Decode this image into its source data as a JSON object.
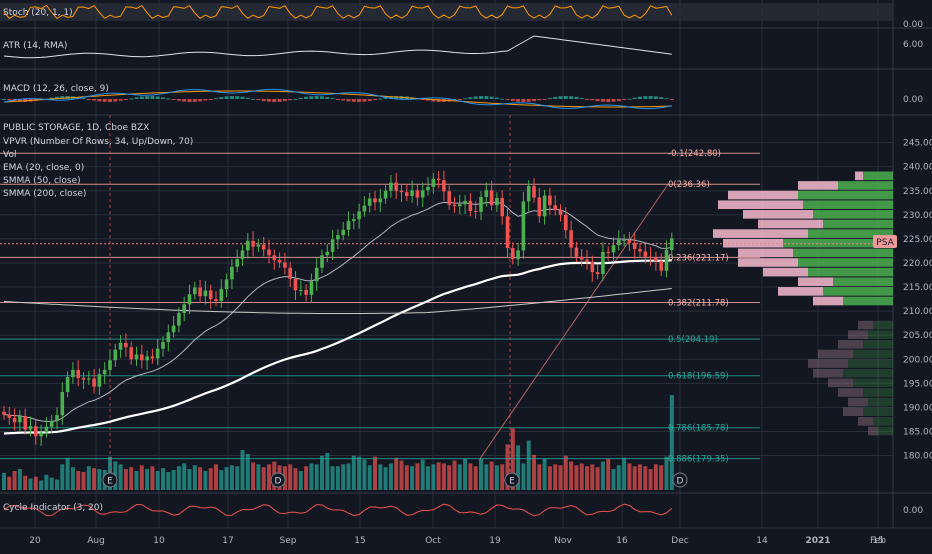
{
  "indicators": {
    "stoch": "Stoch (20, 1, 1)",
    "atr": "ATR (14, RMA)",
    "macd": "MACD (12, 26, close, 9)",
    "cycle": "Cycle Indicator (3, 20)"
  },
  "main_legend": [
    "PUBLIC STORAGE, 1D, Cboe BZX",
    "VPVR (Number Of Rows, 34, Up/Down, 70)",
    "Vol",
    "EMA (20, close, 0)",
    "SMMA (50, close)",
    "SMMA (200, close)"
  ],
  "symbol_tag": "PSA",
  "colors": {
    "background": "#131722",
    "grid": "#2a2e39",
    "up": "#26a69a",
    "down": "#ef5350",
    "up_candle": "#4caf50",
    "ema": "#b2b5be",
    "smma50": "#ffffff",
    "smma200": "#c9c9c9",
    "fib": "#ffb0a8",
    "fib_green": "#26a69a",
    "price_line": "#f08080"
  },
  "panel_axes": {
    "stoch": [
      "0.00"
    ],
    "atr": [
      "6.00"
    ],
    "macd": [
      "0.00"
    ],
    "cycle": [
      "0.00"
    ]
  },
  "chart_data": {
    "type": "candlestick",
    "symbol": "PUBLIC STORAGE",
    "interval": "1D",
    "y_ticks": [
      180,
      185,
      190,
      195,
      200,
      205,
      210,
      215,
      220,
      225,
      230,
      235,
      240,
      245
    ],
    "ylim": [
      177,
      247
    ],
    "x_ticks": [
      "20",
      "Aug",
      "10",
      "17",
      "Sep",
      "15",
      "Oct",
      "19",
      "Nov",
      "16",
      "Dec",
      "14",
      "2021",
      "15",
      "Feb"
    ],
    "fib_levels": [
      {
        "label": "-0.1(242.80)",
        "value": 242.8
      },
      {
        "label": "0(236.36)",
        "value": 236.36
      },
      {
        "label": "0.236(221.17)",
        "value": 221.17
      },
      {
        "label": "0.382(211.78)",
        "value": 211.78
      },
      {
        "label": "0.5(204.19)",
        "value": 204.19
      },
      {
        "label": "0.618(196.59)",
        "value": 196.59
      },
      {
        "label": "0.786(185.78)",
        "value": 185.78
      },
      {
        "label": "0.886(179.35)",
        "value": 179.35
      }
    ],
    "last_price": 224,
    "close": [
      188.5,
      187.8,
      186.9,
      188.2,
      185.4,
      186.1,
      184.0,
      184.8,
      186.0,
      187.2,
      188.4,
      193.2,
      196.3,
      197.8,
      196.1,
      195.8,
      196.0,
      194.3,
      196.9,
      197.8,
      199.8,
      202.0,
      203.4,
      202.5,
      200.0,
      201.0,
      199.8,
      200.6,
      200.2,
      202.2,
      203.6,
      205.6,
      207.0,
      209.6,
      211.4,
      213.5,
      214.9,
      213.1,
      214.3,
      212.5,
      212.1,
      214.6,
      216.6,
      219.2,
      220.8,
      222.6,
      224.6,
      223.4,
      223.8,
      222.8,
      221.6,
      220.6,
      220.1,
      219.0,
      216.7,
      214.3,
      214.4,
      213.4,
      216.2,
      219.0,
      221.6,
      222.3,
      224.9,
      225.8,
      226.9,
      228.7,
      229.1,
      230.7,
      231.9,
      233.4,
      232.6,
      233.4,
      235.0,
      236.7,
      235.0,
      234.7,
      233.9,
      235.1,
      233.6,
      235.1,
      235.8,
      237.5,
      237.2,
      234.9,
      232.1,
      231.8,
      232.2,
      232.9,
      230.8,
      230.6,
      233.7,
      235.1,
      232.0,
      233.5,
      229.7,
      223.1,
      220.8,
      222.6,
      232.8,
      236.0,
      233.6,
      229.7,
      234.0,
      232.0,
      231.0,
      230.0,
      226.8,
      223.2,
      221.3,
      220.7,
      220.3,
      218.1,
      217.7,
      222.3,
      222.2,
      223.7,
      224.8,
      224.8,
      224.2,
      222.9,
      222.4,
      221.3,
      221.1,
      220.4,
      218.4,
      222.7,
      225.1
    ],
    "volume_scale": [
      0.18,
      0.14,
      0.2,
      0.22,
      0.15,
      0.12,
      0.14,
      0.1,
      0.16,
      0.13,
      0.11,
      0.27,
      0.34,
      0.24,
      0.2,
      0.19,
      0.25,
      0.23,
      0.22,
      0.21,
      0.35,
      0.3,
      0.27,
      0.22,
      0.24,
      0.2,
      0.26,
      0.22,
      0.25,
      0.2,
      0.23,
      0.19,
      0.21,
      0.25,
      0.28,
      0.22,
      0.26,
      0.24,
      0.2,
      0.23,
      0.27,
      0.21,
      0.24,
      0.26,
      0.25,
      0.42,
      0.38,
      0.29,
      0.27,
      0.24,
      0.27,
      0.3,
      0.26,
      0.25,
      0.27,
      0.23,
      0.2,
      0.25,
      0.28,
      0.27,
      0.36,
      0.39,
      0.25,
      0.25,
      0.27,
      0.28,
      0.36,
      0.35,
      0.32,
      0.26,
      0.35,
      0.27,
      0.24,
      0.28,
      0.34,
      0.31,
      0.26,
      0.25,
      0.28,
      0.32,
      0.25,
      0.27,
      0.29,
      0.28,
      0.26,
      0.31,
      0.27,
      0.33,
      0.28,
      0.25,
      0.33,
      0.27,
      0.3,
      0.26,
      0.27,
      0.48,
      0.65,
      0.47,
      0.28,
      0.52,
      0.37,
      0.27,
      0.33,
      0.25,
      0.27,
      0.26,
      0.36,
      0.3,
      0.26,
      0.28,
      0.25,
      0.27,
      0.24,
      0.3,
      0.33,
      0.22,
      0.26,
      0.34,
      0.28,
      0.25,
      0.27,
      0.25,
      0.22,
      0.27,
      0.26,
      0.35,
      1.0
    ]
  }
}
